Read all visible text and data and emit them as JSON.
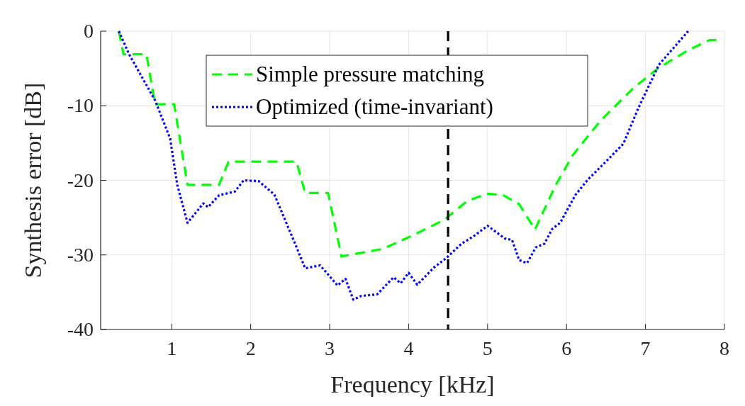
{
  "chart_data": {
    "type": "line",
    "xlabel": "Frequency [kHz]",
    "ylabel": "Synthesis error [dB]",
    "xlim": [
      0.1,
      8
    ],
    "xticks": [
      1,
      2,
      3,
      4,
      5,
      6,
      7,
      8
    ],
    "ylim": [
      -40,
      0
    ],
    "yticks": [
      -40,
      -30,
      -20,
      -10,
      0
    ],
    "grid": true,
    "legend": "top",
    "ref_lines": [
      {
        "axis": "x",
        "value": 4.5,
        "color": "#000000",
        "line_style": "dashed"
      }
    ],
    "series": [
      {
        "name": "Simple pressure matching",
        "color": "#00ff00",
        "line_style": "dashed",
        "x": [
          0.33,
          0.39,
          0.68,
          0.79,
          1.03,
          1.2,
          1.6,
          1.72,
          2.58,
          2.69,
          2.98,
          3.15,
          3.67,
          4.03,
          4.45,
          4.74,
          4.99,
          5.2,
          5.4,
          5.6,
          5.86,
          6.08,
          6.43,
          6.85,
          7.17,
          7.55,
          7.81,
          7.9
        ],
        "values": [
          0,
          -3.1,
          -3.1,
          -9.8,
          -9.8,
          -20.6,
          -20.6,
          -17.5,
          -17.5,
          -21.7,
          -21.7,
          -30.2,
          -29.2,
          -27.5,
          -25.3,
          -22.8,
          -21.8,
          -22,
          -23.2,
          -26.6,
          -20.7,
          -16.6,
          -12,
          -7.6,
          -4.9,
          -2.5,
          -1.2,
          -1.2
        ]
      },
      {
        "name": "Optimized (time-invariant)",
        "color": "#0000ff",
        "line_style": "dotted",
        "x": [
          0.33,
          0.46,
          0.79,
          0.98,
          1.07,
          1.2,
          1.4,
          1.46,
          1.6,
          1.8,
          1.91,
          2.1,
          2.3,
          2.57,
          2.69,
          2.88,
          3.1,
          3.2,
          3.3,
          3.4,
          3.6,
          3.81,
          3.9,
          4.0,
          4.11,
          4.32,
          4.48,
          4.67,
          4.81,
          5.0,
          5.22,
          5.31,
          5.4,
          5.5,
          5.61,
          5.72,
          5.82,
          5.92,
          6.11,
          6.27,
          6.47,
          6.72,
          6.91,
          7.17,
          7.54
        ],
        "values": [
          0,
          -3.1,
          -9.3,
          -14.4,
          -20.6,
          -25.7,
          -23.1,
          -23.6,
          -22,
          -21.5,
          -20,
          -20.1,
          -21.9,
          -28.7,
          -31.8,
          -31.4,
          -34.1,
          -33.2,
          -36,
          -35.5,
          -35.3,
          -33,
          -33.8,
          -32.4,
          -34,
          -31.7,
          -30.4,
          -28.5,
          -27.6,
          -26.1,
          -27.8,
          -28,
          -30.7,
          -31.1,
          -29,
          -28.5,
          -26.5,
          -25.7,
          -22,
          -19.9,
          -17.8,
          -15.1,
          -10.3,
          -4.5,
          0
        ]
      }
    ]
  }
}
